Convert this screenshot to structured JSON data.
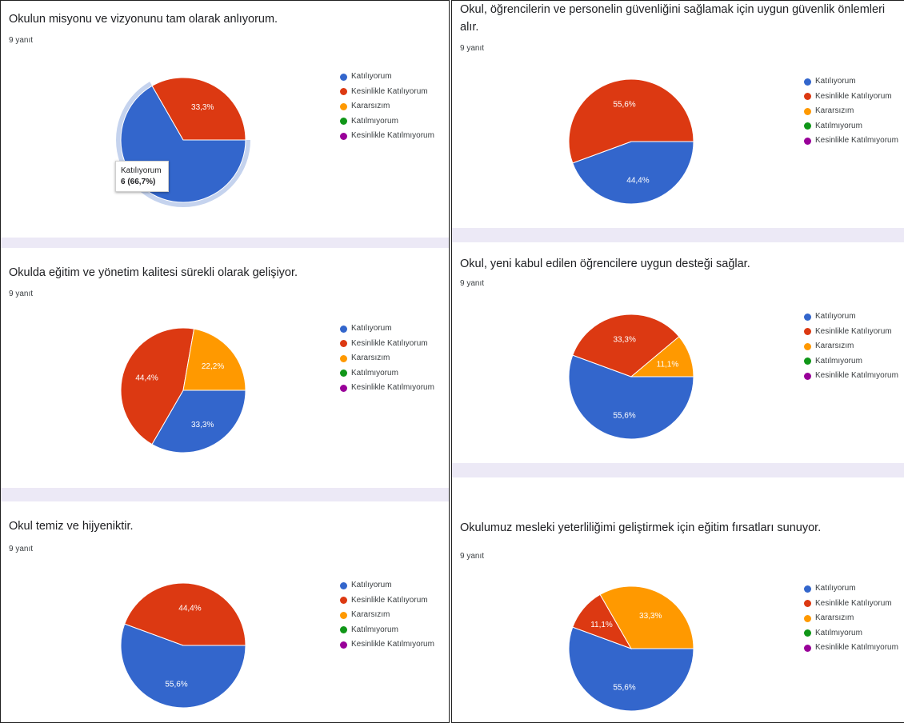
{
  "legend_labels": [
    "Katılıyorum",
    "Kesinlikle Katılıyorum",
    "Kararsızım",
    "Katılmıyorum",
    "Kesinlikle Katılmıyorum"
  ],
  "colors": [
    "#3366cc",
    "#dc3912",
    "#ff9900",
    "#109618",
    "#990099"
  ],
  "chart_data": [
    {
      "type": "pie",
      "title": "Okulun misyonu ve vizyonunu tam olarak anlıyorum.",
      "responses": "9 yanıt",
      "categories": [
        "Katılıyorum",
        "Kesinlikle Katılıyorum",
        "Kararsızım",
        "Katılmıyorum",
        "Kesinlikle Katılmıyorum"
      ],
      "values": [
        66.7,
        33.3,
        0,
        0,
        0
      ],
      "slice_labels": [
        "",
        "33,3%",
        "",
        "",
        ""
      ],
      "tooltip": {
        "label": "Katılıyorum",
        "value": "6 (66,7%)"
      }
    },
    {
      "type": "pie",
      "title": "Okul, öğrencilerin ve personelin güvenliğini sağlamak için uygun güvenlik önlemleri alır.",
      "responses": "9 yanıt",
      "categories": [
        "Katılıyorum",
        "Kesinlikle Katılıyorum",
        "Kararsızım",
        "Katılmıyorum",
        "Kesinlikle Katılmıyorum"
      ],
      "values": [
        44.4,
        55.6,
        0,
        0,
        0
      ],
      "slice_labels": [
        "44,4%",
        "55,6%",
        "",
        "",
        ""
      ]
    },
    {
      "type": "pie",
      "title": "Okulda eğitim ve yönetim kalitesi sürekli olarak gelişiyor.",
      "responses": "9 yanıt",
      "categories": [
        "Katılıyorum",
        "Kesinlikle Katılıyorum",
        "Kararsızım",
        "Katılmıyorum",
        "Kesinlikle Katılmıyorum"
      ],
      "values": [
        33.3,
        44.4,
        22.2,
        0,
        0
      ],
      "slice_labels": [
        "33,3%",
        "44,4%",
        "22,2%",
        "",
        ""
      ]
    },
    {
      "type": "pie",
      "title": "Okul, yeni kabul edilen öğrencilere uygun desteği sağlar.",
      "responses": "9 yanıt",
      "categories": [
        "Katılıyorum",
        "Kesinlikle Katılıyorum",
        "Kararsızım",
        "Katılmıyorum",
        "Kesinlikle Katılmıyorum"
      ],
      "values": [
        55.6,
        33.3,
        11.1,
        0,
        0
      ],
      "slice_labels": [
        "55,6%",
        "33,3%",
        "11,1%",
        "",
        ""
      ]
    },
    {
      "type": "pie",
      "title": "Okul temiz ve hijyeniktir.",
      "responses": "9 yanıt",
      "categories": [
        "Katılıyorum",
        "Kesinlikle Katılıyorum",
        "Kararsızım",
        "Katılmıyorum",
        "Kesinlikle Katılmıyorum"
      ],
      "values": [
        55.6,
        44.4,
        0,
        0,
        0
      ],
      "slice_labels": [
        "55,6%",
        "44,4%",
        "",
        "",
        ""
      ]
    },
    {
      "type": "pie",
      "title": "Okulumuz mesleki yeterliliğimi geliştirmek için eğitim fırsatları sunuyor.",
      "responses": "9 yanıt",
      "categories": [
        "Katılıyorum",
        "Kesinlikle Katılıyorum",
        "Kararsızım",
        "Katılmıyorum",
        "Kesinlikle Katılmıyorum"
      ],
      "values": [
        55.6,
        11.1,
        33.3,
        0,
        0
      ],
      "slice_labels": [
        "55,6%",
        "11,1%",
        "33,3%",
        "",
        ""
      ]
    }
  ]
}
